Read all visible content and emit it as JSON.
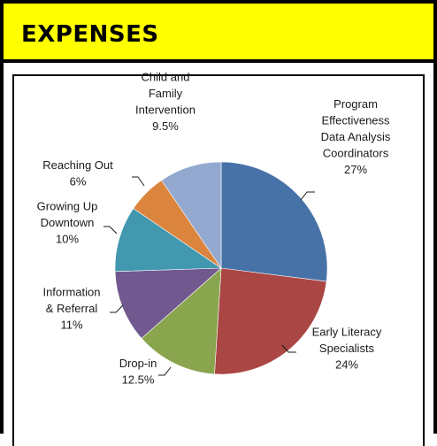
{
  "header": {
    "title": "EXPENSES"
  },
  "colors": {
    "header_bg": "#ffff00"
  },
  "chart_data": {
    "type": "pie",
    "start_angle_deg": 0,
    "direction": "clockwise",
    "slices": [
      {
        "label": [
          "Program",
          "Effectiveness",
          "Data Analysis",
          "Coordinators",
          "27%"
        ],
        "value": 27,
        "color": "#4672a8"
      },
      {
        "label": [
          "Early Literacy",
          "Specialists",
          "24%"
        ],
        "value": 24,
        "color": "#aa4643"
      },
      {
        "label": [
          "Drop-in",
          "12.5%"
        ],
        "value": 12.5,
        "color": "#89a54e"
      },
      {
        "label": [
          "Information",
          "& Referral",
          "11%"
        ],
        "value": 11,
        "color": "#71588f"
      },
      {
        "label": [
          "Growing Up",
          "Downtown",
          "10%"
        ],
        "value": 10,
        "color": "#4198af"
      },
      {
        "label": [
          "Reaching Out",
          "6%"
        ],
        "value": 6,
        "color": "#db843d"
      },
      {
        "label": [
          "Child and",
          "Family",
          "Intervention",
          "9.5%"
        ],
        "value": 9.5,
        "color": "#93a9cf"
      }
    ]
  }
}
